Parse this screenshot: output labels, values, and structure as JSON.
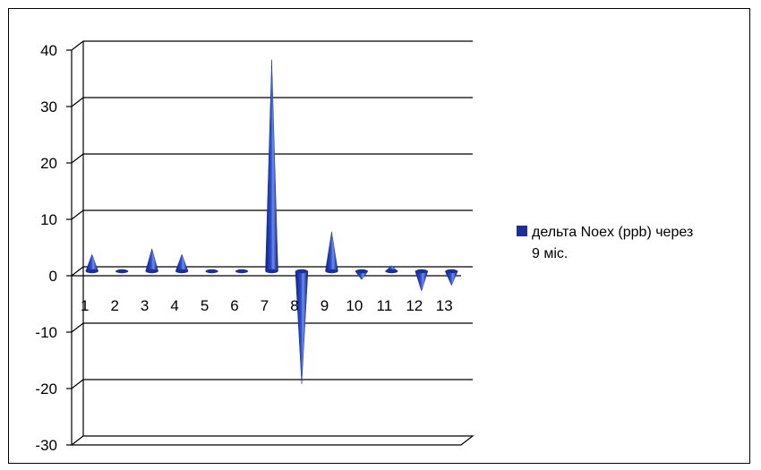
{
  "chart_data": {
    "type": "bar",
    "style": "3d-cone",
    "categories": [
      "1",
      "2",
      "3",
      "4",
      "5",
      "6",
      "7",
      "8",
      "9",
      "10",
      "11",
      "12",
      "13"
    ],
    "series": [
      {
        "name": "дельта Noex (ppb) через 9 міс.",
        "color": "#1a2f9c",
        "values": [
          3,
          0.3,
          4,
          3,
          0.3,
          0.3,
          37.5,
          -20,
          7,
          -1.5,
          1,
          -3.5,
          -2.5
        ]
      }
    ],
    "ylim": [
      -30,
      40
    ],
    "yticks": [
      -30,
      -20,
      -10,
      0,
      10,
      20,
      30,
      40
    ],
    "grid": true,
    "legend": "right"
  },
  "legend": {
    "line1": "дельта Noex (ppb) через",
    "line2": "9 міс."
  }
}
